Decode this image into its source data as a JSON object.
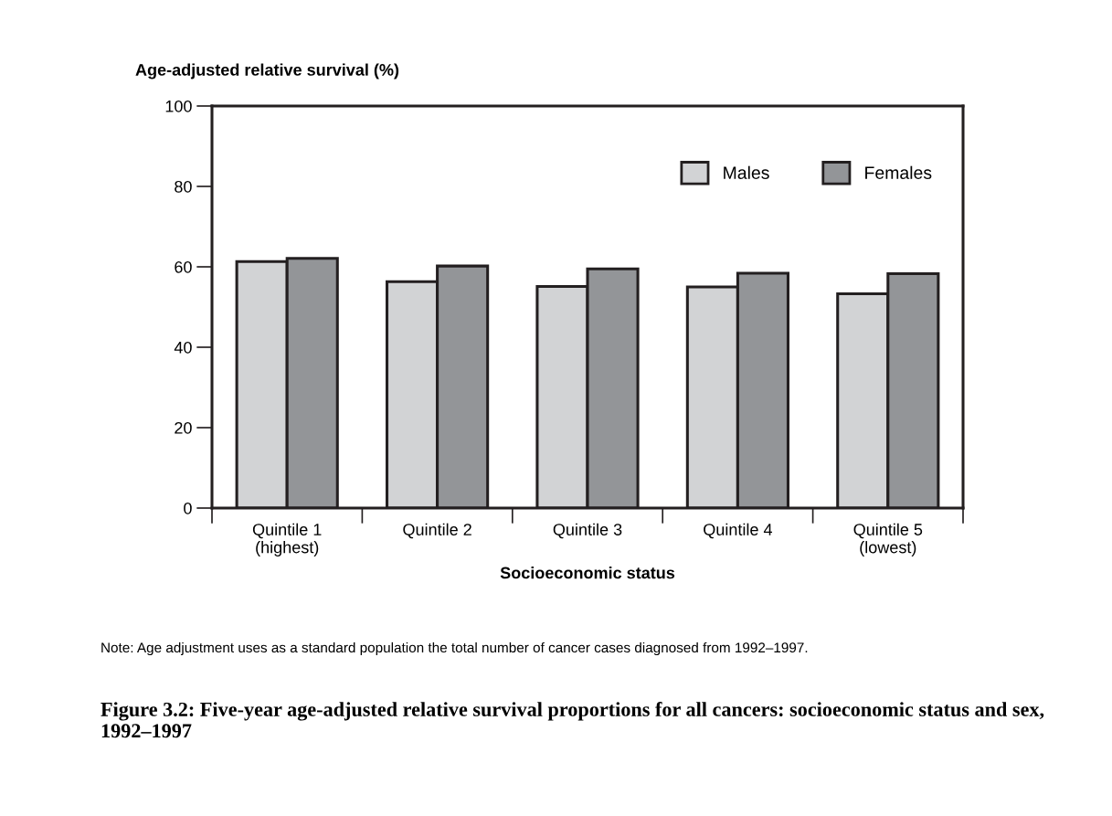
{
  "chart_data": {
    "type": "bar",
    "title": "Figure 3.2: Five-year age-adjusted relative survival proportions for all cancers: socioeconomic status and sex, 1992–1997",
    "ylabel": "Age-adjusted relative survival (%)",
    "xlabel": "Socioeconomic status",
    "categories": [
      "Quintile 1\n(highest)",
      "Quintile 2",
      "Quintile 3",
      "Quintile 4",
      "Quintile 5\n(lowest)"
    ],
    "series": [
      {
        "name": "Males",
        "color": "#d2d3d5",
        "values": [
          61.3,
          56.3,
          55.1,
          55.0,
          53.3
        ]
      },
      {
        "name": "Females",
        "color": "#939598",
        "values": [
          62.1,
          60.2,
          59.5,
          58.4,
          58.3
        ]
      }
    ],
    "ylim": [
      0,
      100
    ],
    "yticks": [
      0,
      20,
      40,
      60,
      80,
      100
    ],
    "grid": false,
    "legend": "top right",
    "annotations": [
      "Note: Age adjustment uses as a standard population the total number of cancer cases diagnosed from 1992–1997."
    ]
  }
}
